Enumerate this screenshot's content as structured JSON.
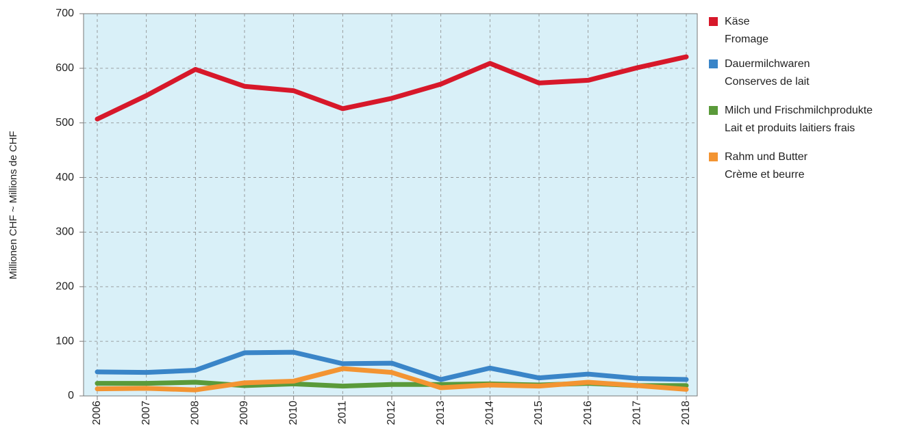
{
  "chart_data": {
    "type": "line",
    "y_label": "Millionen CHF   ~ Millions de CHF",
    "categories": [
      "2006",
      "2007",
      "2008",
      "2009",
      "2010",
      "2011",
      "2012",
      "2013",
      "2014",
      "2015",
      "2016",
      "2017",
      "2018"
    ],
    "series": [
      {
        "name": "Käse",
        "name_2": "Fromage",
        "color": "#d7182a",
        "values": [
          507,
          550,
          598,
          567,
          559,
          526,
          545,
          571,
          609,
          573,
          578,
          601,
          621
        ]
      },
      {
        "name": "Dauermilchwaren",
        "name_2": "Conserves de lait",
        "color": "#3a85c8",
        "values": [
          44,
          43,
          47,
          79,
          80,
          59,
          60,
          30,
          51,
          33,
          40,
          32,
          30
        ]
      },
      {
        "name": "Milch und Frischmilchprodukte",
        "name_2": "Lait et produits laitiers frais",
        "color": "#5a9a3a",
        "values": [
          23,
          23,
          25,
          19,
          22,
          18,
          21,
          21,
          22,
          20,
          23,
          19,
          19
        ]
      },
      {
        "name": "Rahm und Butter",
        "name_2": "Crème et beurre",
        "color": "#f39432",
        "values": [
          13,
          14,
          11,
          24,
          27,
          50,
          43,
          15,
          20,
          18,
          25,
          19,
          12
        ]
      }
    ],
    "ylim": [
      0,
      700
    ],
    "yticks": [
      0,
      100,
      200,
      300,
      400,
      500,
      600,
      700
    ],
    "grid": true,
    "legend": "right"
  }
}
